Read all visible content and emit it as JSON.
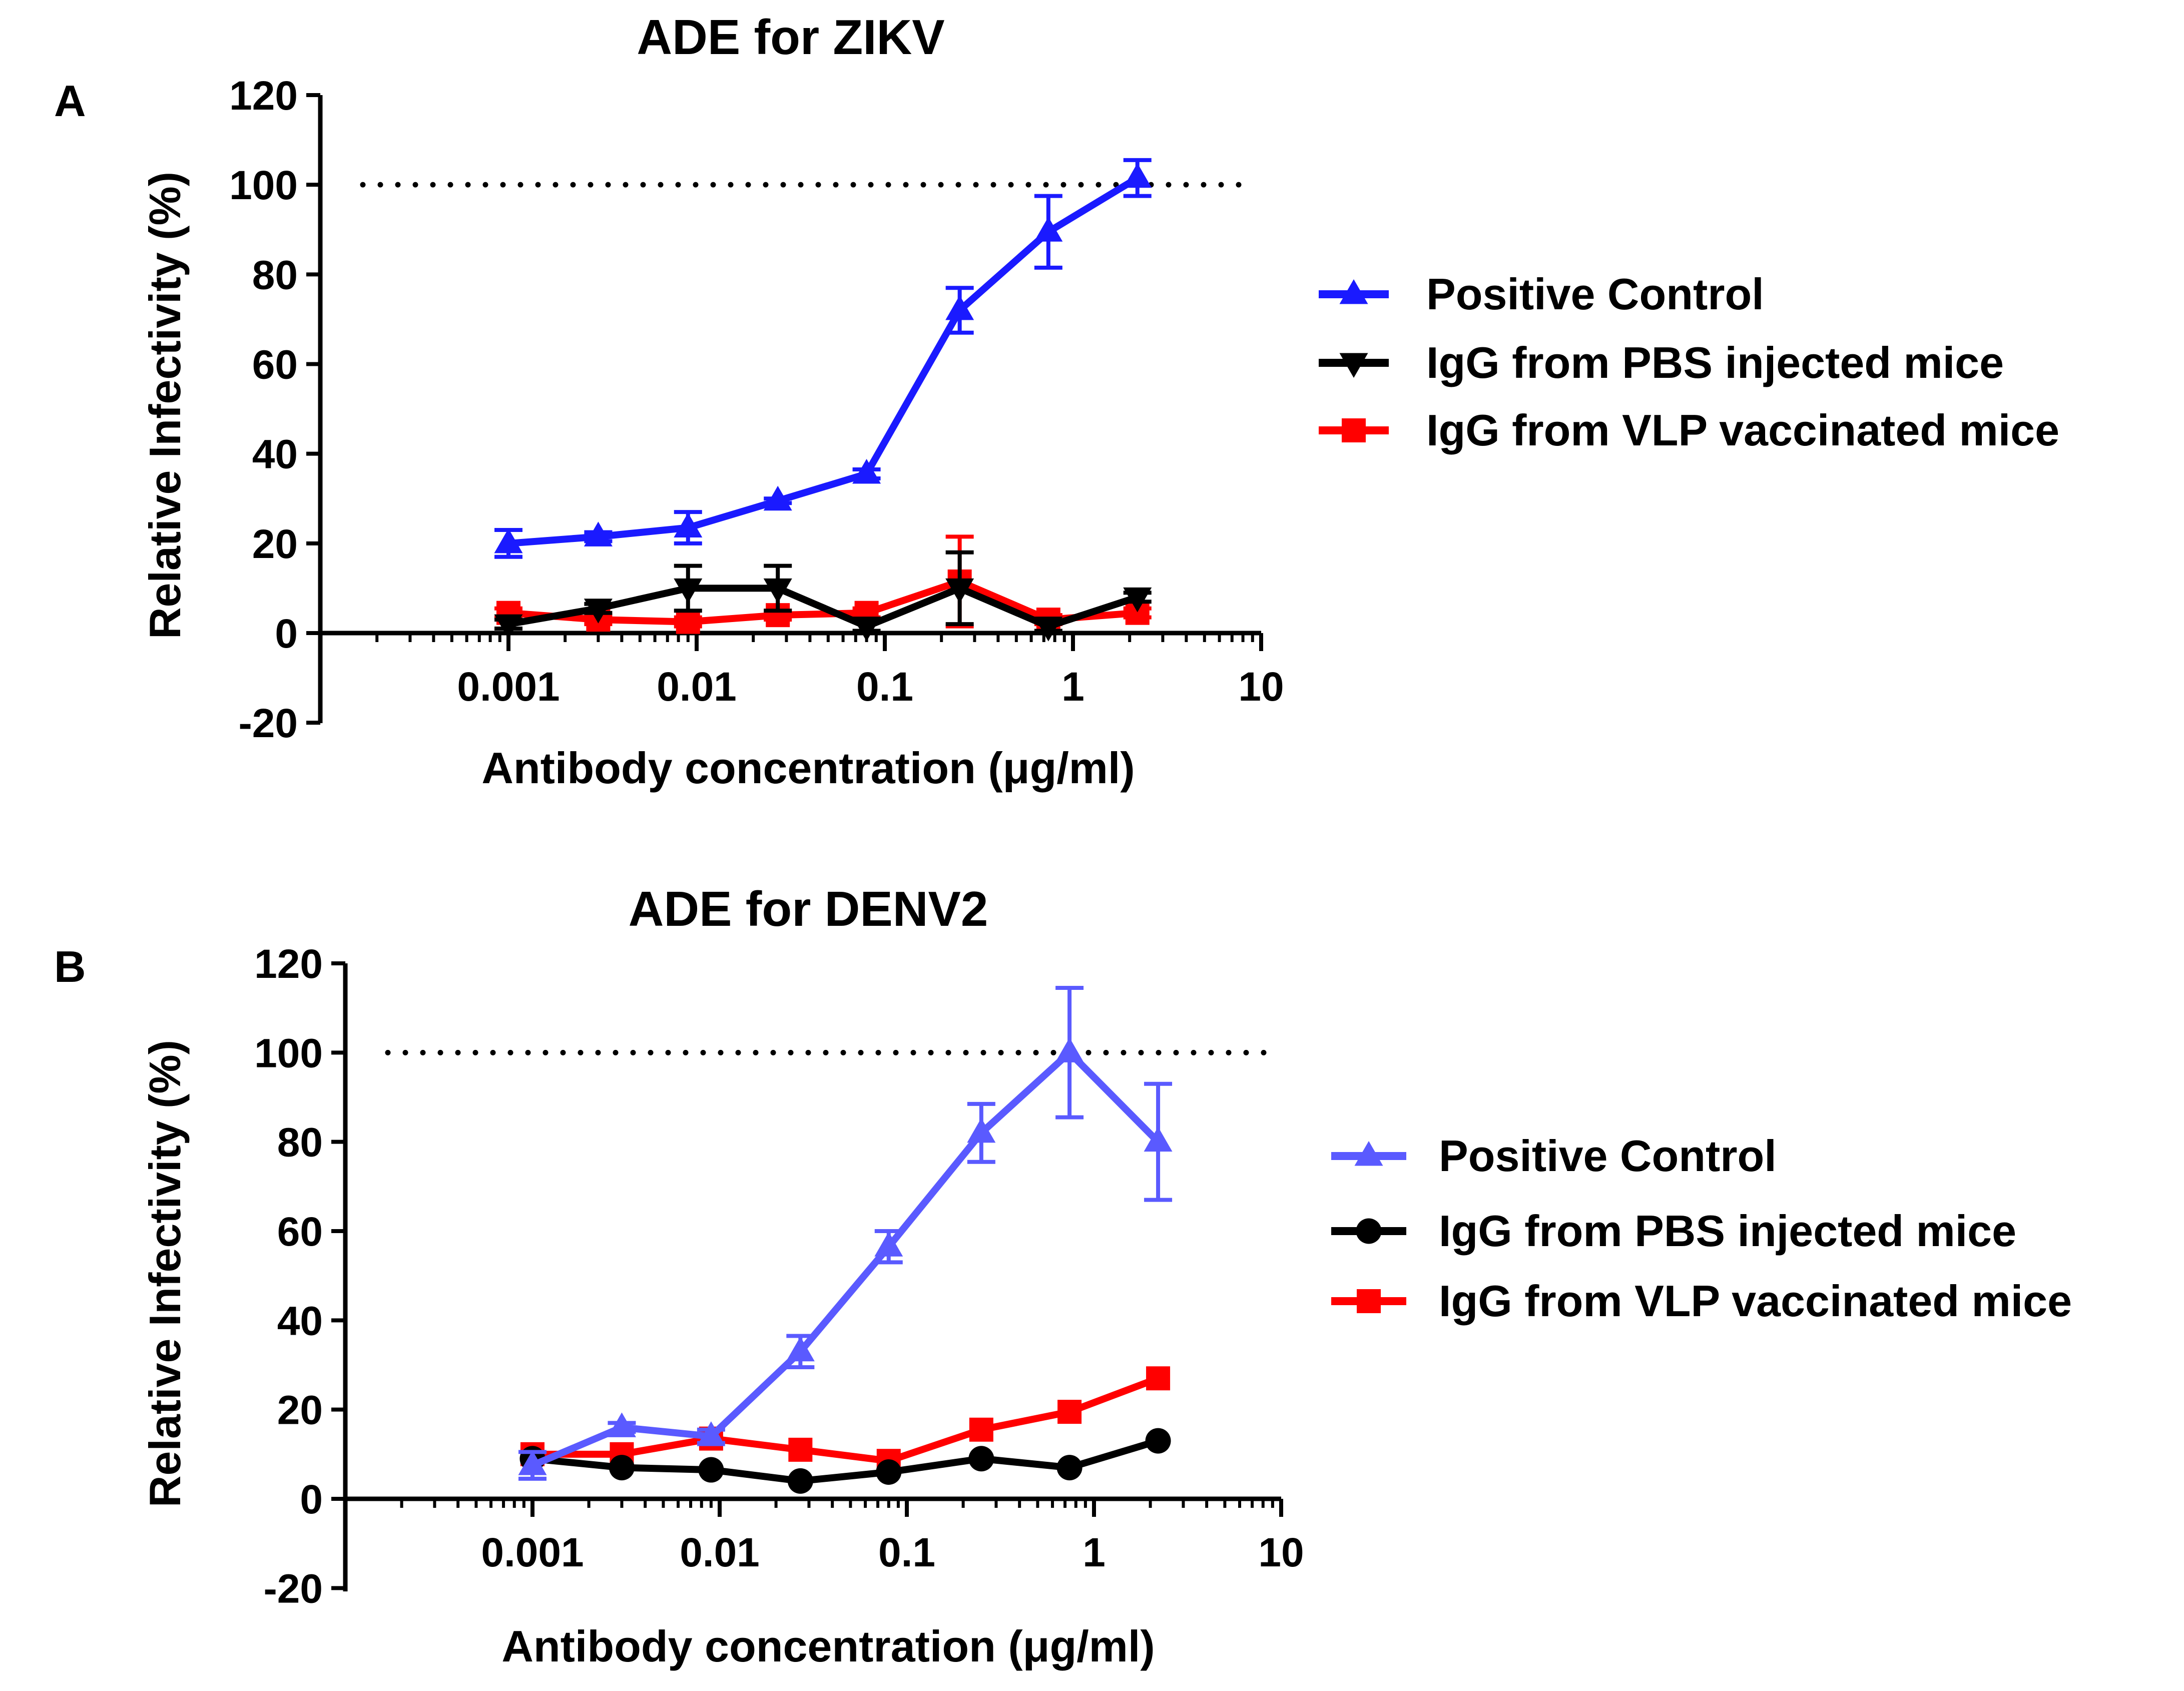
{
  "chart_data": [
    {
      "panel_label": "A",
      "type": "line",
      "title": "ADE for ZIKV",
      "xlabel": "Antibody concentration (μg/ml)",
      "ylabel": "Relative Infectivity (%)",
      "xscale": "log",
      "xlim": [
        0.0001,
        10
      ],
      "ylim": [
        -20,
        120
      ],
      "xticks": [
        0.001,
        0.01,
        0.1,
        1,
        10
      ],
      "xtick_labels": [
        "0.001",
        "0.01",
        "0.1",
        "1",
        "10"
      ],
      "yticks": [
        -20,
        0,
        20,
        40,
        60,
        80,
        100,
        120
      ],
      "ytick_labels": [
        "-20",
        "0",
        "20",
        "40",
        "60",
        "80",
        "100",
        "120"
      ],
      "reference_line": 100,
      "grid": false,
      "legend_position": "right",
      "x": [
        0.001,
        0.003,
        0.009,
        0.027,
        0.08,
        0.25,
        0.74,
        2.2
      ],
      "series": [
        {
          "name": "Positive Control",
          "color": "#1a1aff",
          "marker": "triangle-up",
          "values": [
            20,
            21.5,
            23.5,
            29.5,
            35.5,
            72,
            89.5,
            101.5
          ],
          "errors": [
            3,
            1,
            3.5,
            0.5,
            1,
            5,
            8,
            4
          ]
        },
        {
          "name": "IgG from PBS injected mice",
          "color": "#000000",
          "marker": "triangle-down",
          "values": [
            2,
            5.5,
            10,
            10,
            1.5,
            10,
            1.5,
            8
          ],
          "errors": [
            1,
            1,
            5,
            5,
            1,
            8,
            1,
            1
          ]
        },
        {
          "name": "IgG from VLP vaccinated mice",
          "color": "#ff0000",
          "marker": "square",
          "values": [
            4.5,
            3,
            2.5,
            4,
            4.5,
            11.5,
            3,
            4.5
          ],
          "errors": [
            1,
            1,
            1,
            1,
            1,
            10,
            1,
            1
          ]
        }
      ]
    },
    {
      "panel_label": "B",
      "type": "line",
      "title": "ADE for DENV2",
      "xlabel": "Antibody concentration (μg/ml)",
      "ylabel": "Relative Infectivity (%)",
      "xscale": "log",
      "xlim": [
        0.0001,
        10
      ],
      "ylim": [
        -20,
        120
      ],
      "xticks": [
        0.001,
        0.01,
        0.1,
        1,
        10
      ],
      "xtick_labels": [
        "0.001",
        "0.01",
        "0.1",
        "1",
        "10"
      ],
      "yticks": [
        -20,
        0,
        20,
        40,
        60,
        80,
        100,
        120
      ],
      "ytick_labels": [
        "-20",
        "0",
        "20",
        "40",
        "60",
        "80",
        "100",
        "120"
      ],
      "reference_line": 100,
      "grid": false,
      "legend_position": "right",
      "x": [
        0.001,
        0.003,
        0.009,
        0.027,
        0.08,
        0.25,
        0.74,
        2.2
      ],
      "series": [
        {
          "name": "Positive Control",
          "color": "#5a5aff",
          "marker": "triangle-up",
          "values": [
            7.5,
            16,
            14,
            33,
            56.5,
            82,
            100,
            80
          ],
          "errors": [
            3,
            1,
            1.5,
            3.5,
            3.5,
            6.5,
            14.5,
            13
          ]
        },
        {
          "name": "IgG from PBS injected mice",
          "color": "#000000",
          "marker": "circle",
          "values": [
            9,
            7,
            6.5,
            4,
            6,
            9,
            7,
            13
          ],
          "errors": [
            0,
            0,
            0,
            0,
            0,
            0,
            0,
            0
          ]
        },
        {
          "name": "IgG from VLP vaccinated mice",
          "color": "#ff0000",
          "marker": "square",
          "values": [
            10,
            10,
            13.5,
            11,
            8.5,
            15.5,
            19.5,
            27
          ],
          "errors": [
            0,
            0,
            0,
            0,
            0,
            0,
            0,
            0
          ]
        }
      ]
    }
  ]
}
